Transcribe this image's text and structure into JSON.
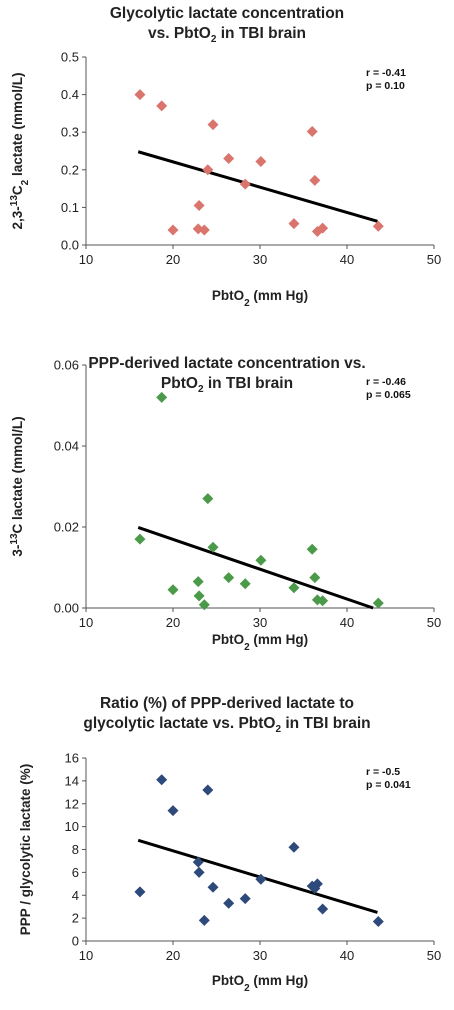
{
  "chart_data": [
    {
      "type": "scatter",
      "title": [
        "Glycolytic lactate concentration",
        "vs. PbtO2 in TBI brain"
      ],
      "xlabel": "PbtO2 (mm Hg)",
      "ylabel": "2,3-13C2 lactate (mmol/L)",
      "xlim": [
        10,
        50
      ],
      "ylim": [
        0,
        0.5
      ],
      "xticks": [
        "10",
        "20",
        "30",
        "40",
        "50"
      ],
      "yticks": [
        "0.0",
        "0.1",
        "0.2",
        "0.3",
        "0.4",
        "0.5"
      ],
      "marker_color": "#d9756d",
      "annotation": [
        "r = -0.41",
        "p = 0.10"
      ],
      "trendline": {
        "x": [
          16,
          43.5
        ],
        "y": [
          0.248,
          0.063
        ]
      },
      "points": [
        {
          "x": 16.2,
          "y": 0.4
        },
        {
          "x": 18.7,
          "y": 0.37
        },
        {
          "x": 20.0,
          "y": 0.04
        },
        {
          "x": 22.9,
          "y": 0.043
        },
        {
          "x": 23.0,
          "y": 0.105
        },
        {
          "x": 23.6,
          "y": 0.04
        },
        {
          "x": 24.0,
          "y": 0.2
        },
        {
          "x": 24.6,
          "y": 0.32
        },
        {
          "x": 26.4,
          "y": 0.23
        },
        {
          "x": 28.3,
          "y": 0.162
        },
        {
          "x": 30.1,
          "y": 0.222
        },
        {
          "x": 33.9,
          "y": 0.057
        },
        {
          "x": 36.0,
          "y": 0.302
        },
        {
          "x": 36.3,
          "y": 0.172
        },
        {
          "x": 36.6,
          "y": 0.036
        },
        {
          "x": 37.2,
          "y": 0.045
        },
        {
          "x": 43.6,
          "y": 0.05
        }
      ]
    },
    {
      "type": "scatter",
      "title": [
        "PPP-derived lactate concentration vs.",
        "PbtO2 in TBI brain"
      ],
      "xlabel": "PbtO2 (mm Hg)",
      "ylabel": "3-13C lactate (mmol/L)",
      "xlim": [
        10,
        50
      ],
      "ylim": [
        0,
        0.06
      ],
      "xticks": [
        "10",
        "20",
        "30",
        "40",
        "50"
      ],
      "yticks": [
        "0.00",
        "0.02",
        "0.04",
        "0.06"
      ],
      "marker_color": "#4a9a49",
      "annotation": [
        "r = -0.46",
        "p = 0.065"
      ],
      "trendline": {
        "x": [
          16,
          43
        ],
        "y": [
          0.0199,
          0.0
        ]
      },
      "points": [
        {
          "x": 16.2,
          "y": 0.017
        },
        {
          "x": 18.7,
          "y": 0.052
        },
        {
          "x": 20.0,
          "y": 0.0045
        },
        {
          "x": 22.9,
          "y": 0.0065
        },
        {
          "x": 23.0,
          "y": 0.003
        },
        {
          "x": 23.6,
          "y": 0.0008
        },
        {
          "x": 24.0,
          "y": 0.027
        },
        {
          "x": 24.6,
          "y": 0.015
        },
        {
          "x": 26.4,
          "y": 0.0075
        },
        {
          "x": 28.3,
          "y": 0.006
        },
        {
          "x": 30.1,
          "y": 0.0118
        },
        {
          "x": 33.9,
          "y": 0.005
        },
        {
          "x": 36.0,
          "y": 0.0145
        },
        {
          "x": 36.3,
          "y": 0.0075
        },
        {
          "x": 36.6,
          "y": 0.002
        },
        {
          "x": 37.2,
          "y": 0.0018
        },
        {
          "x": 43.6,
          "y": 0.0012
        }
      ]
    },
    {
      "type": "scatter",
      "title": [
        "Ratio (%) of PPP-derived lactate to",
        "glycolytic lactate vs. PbtO2 in TBI brain"
      ],
      "xlabel": "PbtO2 (mm Hg)",
      "ylabel": "PPP / glycolytic lactate (%)",
      "xlim": [
        10,
        50
      ],
      "ylim": [
        0,
        16
      ],
      "xticks": [
        "10",
        "20",
        "30",
        "40",
        "50"
      ],
      "yticks": [
        "0",
        "2",
        "4",
        "6",
        "8",
        "10",
        "12",
        "14",
        "16"
      ],
      "marker_color": "#2e4a7a",
      "annotation": [
        "r = -0.5",
        "p = 0.041"
      ],
      "trendline": {
        "x": [
          16,
          43.5
        ],
        "y": [
          8.8,
          2.5
        ]
      },
      "points": [
        {
          "x": 16.2,
          "y": 4.3
        },
        {
          "x": 18.7,
          "y": 14.1
        },
        {
          "x": 20.0,
          "y": 11.4
        },
        {
          "x": 22.9,
          "y": 6.9
        },
        {
          "x": 23.0,
          "y": 6.0
        },
        {
          "x": 23.6,
          "y": 1.8
        },
        {
          "x": 24.0,
          "y": 13.2
        },
        {
          "x": 24.6,
          "y": 4.7
        },
        {
          "x": 26.4,
          "y": 3.3
        },
        {
          "x": 28.3,
          "y": 3.7
        },
        {
          "x": 30.1,
          "y": 5.4
        },
        {
          "x": 33.9,
          "y": 8.2
        },
        {
          "x": 36.0,
          "y": 4.8
        },
        {
          "x": 36.3,
          "y": 4.6
        },
        {
          "x": 36.6,
          "y": 5.0
        },
        {
          "x": 37.2,
          "y": 2.8
        },
        {
          "x": 43.6,
          "y": 1.7
        }
      ]
    }
  ]
}
